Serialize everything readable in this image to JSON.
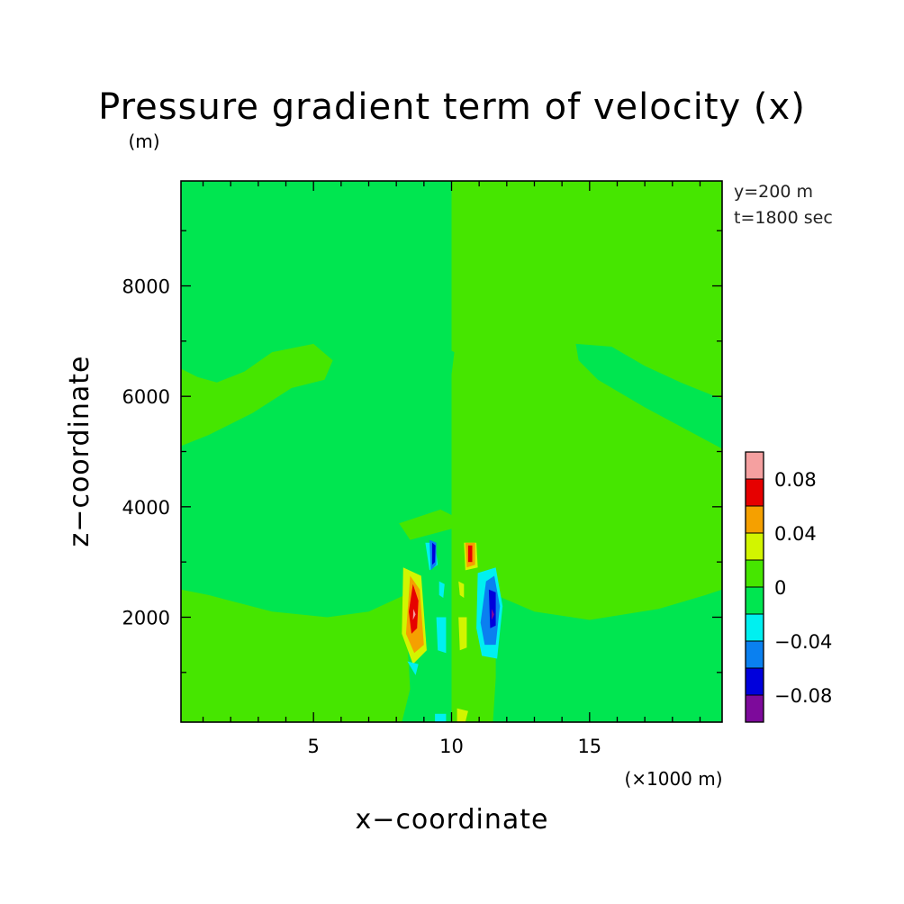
{
  "chart_data": {
    "type": "heatmap",
    "title": "Pressure gradient term of velocity (x)",
    "xlabel": "x−coordinate",
    "ylabel": "z−coordinate",
    "x_unit": "(×1000 m)",
    "y_unit": "(m)",
    "annotations": [
      "y=200 m",
      "t=1800 sec"
    ],
    "xlim": [
      0.2,
      19.8
    ],
    "ylim": [
      100,
      9900
    ],
    "x_ticks": [
      5,
      10,
      15
    ],
    "x_tick_labels": [
      "5",
      "10",
      "15"
    ],
    "y_ticks": [
      2000,
      4000,
      6000,
      8000
    ],
    "y_tick_labels": [
      "2000",
      "4000",
      "6000",
      "8000"
    ],
    "colorbar": {
      "levels": [
        -0.1,
        -0.08,
        -0.06,
        -0.04,
        -0.02,
        0,
        0.02,
        0.04,
        0.06,
        0.08,
        0.1
      ],
      "colors": [
        "#7d0a9b",
        "#0000dc",
        "#0a80f0",
        "#00f0f0",
        "#00e650",
        "#46e600",
        "#d2f500",
        "#f5a000",
        "#e60000",
        "#f5a0a0"
      ],
      "tick_values": [
        0.08,
        0.04,
        0,
        -0.04,
        -0.08
      ],
      "tick_labels": [
        "0.08",
        "0.04",
        "0",
        "−0.04",
        "−0.08"
      ]
    },
    "regions": [
      {
        "value": 0.01,
        "points": [
          [
            10,
            9900
          ],
          [
            19.8,
            9900
          ],
          [
            19.8,
            100
          ],
          [
            10,
            100
          ]
        ]
      },
      {
        "value": 0.01,
        "points": [
          [
            0.2,
            6500
          ],
          [
            0.8,
            6350
          ],
          [
            1.5,
            6250
          ],
          [
            2.5,
            6450
          ],
          [
            3.5,
            6800
          ],
          [
            5.0,
            6950
          ],
          [
            5.7,
            6650
          ],
          [
            5.4,
            6300
          ],
          [
            4.2,
            6150
          ],
          [
            2.8,
            5700
          ],
          [
            1.2,
            5300
          ],
          [
            0.2,
            5100
          ]
        ]
      },
      {
        "value": 0.01,
        "points": [
          [
            0.2,
            2500
          ],
          [
            1.2,
            2400
          ],
          [
            3.5,
            2100
          ],
          [
            5.5,
            2000
          ],
          [
            7.0,
            2100
          ],
          [
            8.3,
            2400
          ],
          [
            8.5,
            700
          ],
          [
            8.2,
            100
          ],
          [
            0.2,
            100
          ]
        ]
      },
      {
        "value": -0.01,
        "points": [
          [
            14.5,
            6950
          ],
          [
            15.8,
            6900
          ],
          [
            17.0,
            6550
          ],
          [
            18.3,
            6250
          ],
          [
            19.8,
            5950
          ],
          [
            19.8,
            5050
          ],
          [
            18.5,
            5400
          ],
          [
            17.0,
            5800
          ],
          [
            15.3,
            6300
          ],
          [
            14.6,
            6650
          ]
        ]
      },
      {
        "value": -0.01,
        "points": [
          [
            11.6,
            2400
          ],
          [
            13.0,
            2100
          ],
          [
            15.0,
            1950
          ],
          [
            17.5,
            2150
          ],
          [
            19.2,
            2400
          ],
          [
            19.8,
            2500
          ],
          [
            19.8,
            100
          ],
          [
            11.5,
            100
          ],
          [
            11.6,
            900
          ]
        ]
      },
      {
        "value": -0.01,
        "points": [
          [
            9.9,
            6850
          ],
          [
            10.1,
            6800
          ],
          [
            10.0,
            6400
          ],
          [
            9.85,
            6550
          ]
        ]
      },
      {
        "value": 0.01,
        "points": [
          [
            8.1,
            3700
          ],
          [
            9.6,
            3950
          ],
          [
            10.0,
            3850
          ],
          [
            11.2,
            3950
          ],
          [
            11.8,
            3700
          ],
          [
            11.4,
            3400
          ],
          [
            10.0,
            3600
          ],
          [
            8.5,
            3400
          ]
        ]
      },
      {
        "value": 0.03,
        "points": [
          [
            8.25,
            2900
          ],
          [
            8.9,
            2750
          ],
          [
            9.1,
            1400
          ],
          [
            8.6,
            1150
          ],
          [
            8.2,
            1700
          ]
        ]
      },
      {
        "value": 0.05,
        "points": [
          [
            8.5,
            2750
          ],
          [
            8.85,
            2500
          ],
          [
            9.0,
            1500
          ],
          [
            8.65,
            1350
          ],
          [
            8.35,
            1700
          ]
        ]
      },
      {
        "value": 0.07,
        "points": [
          [
            8.6,
            2600
          ],
          [
            8.8,
            2300
          ],
          [
            8.75,
            1800
          ],
          [
            8.55,
            1700
          ],
          [
            8.45,
            2100
          ]
        ]
      },
      {
        "value": 0.09,
        "points": [
          [
            8.62,
            2150
          ],
          [
            8.7,
            2050
          ],
          [
            8.6,
            1950
          ]
        ]
      },
      {
        "value": -0.03,
        "points": [
          [
            9.05,
            3350
          ],
          [
            9.4,
            3350
          ],
          [
            9.5,
            2950
          ],
          [
            9.2,
            2850
          ]
        ]
      },
      {
        "value": -0.05,
        "points": [
          [
            9.2,
            3400
          ],
          [
            9.45,
            3350
          ],
          [
            9.45,
            2950
          ],
          [
            9.25,
            2850
          ]
        ]
      },
      {
        "value": -0.07,
        "points": [
          [
            9.3,
            3350
          ],
          [
            9.42,
            3300
          ],
          [
            9.4,
            3000
          ],
          [
            9.3,
            2950
          ]
        ]
      },
      {
        "value": -0.03,
        "points": [
          [
            9.55,
            2650
          ],
          [
            9.75,
            2600
          ],
          [
            9.7,
            2350
          ],
          [
            9.55,
            2400
          ]
        ]
      },
      {
        "value": -0.03,
        "points": [
          [
            9.45,
            2000
          ],
          [
            9.8,
            2000
          ],
          [
            9.8,
            1350
          ],
          [
            9.5,
            1400
          ]
        ]
      },
      {
        "value": -0.03,
        "points": [
          [
            8.4,
            1200
          ],
          [
            8.8,
            1150
          ],
          [
            8.7,
            950
          ]
        ]
      },
      {
        "value": 0.03,
        "points": [
          [
            10.45,
            3350
          ],
          [
            10.9,
            3350
          ],
          [
            10.95,
            2900
          ],
          [
            10.5,
            2850
          ]
        ]
      },
      {
        "value": 0.05,
        "points": [
          [
            10.5,
            3350
          ],
          [
            10.85,
            3350
          ],
          [
            10.85,
            2950
          ],
          [
            10.55,
            2900
          ]
        ]
      },
      {
        "value": 0.07,
        "points": [
          [
            10.6,
            3300
          ],
          [
            10.75,
            3300
          ],
          [
            10.75,
            3000
          ],
          [
            10.6,
            3000
          ]
        ]
      },
      {
        "value": 0.03,
        "points": [
          [
            10.25,
            2650
          ],
          [
            10.45,
            2600
          ],
          [
            10.45,
            2350
          ],
          [
            10.3,
            2400
          ]
        ]
      },
      {
        "value": 0.03,
        "points": [
          [
            10.25,
            2000
          ],
          [
            10.55,
            2000
          ],
          [
            10.55,
            1450
          ],
          [
            10.3,
            1400
          ]
        ]
      },
      {
        "value": 0.03,
        "points": [
          [
            10.2,
            350
          ],
          [
            10.6,
            300
          ],
          [
            10.5,
            100
          ],
          [
            10.2,
            100
          ]
        ]
      },
      {
        "value": -0.03,
        "points": [
          [
            10.95,
            2800
          ],
          [
            11.6,
            2900
          ],
          [
            11.85,
            2200
          ],
          [
            11.65,
            1250
          ],
          [
            11.1,
            1300
          ],
          [
            10.9,
            1800
          ]
        ]
      },
      {
        "value": -0.05,
        "points": [
          [
            11.25,
            2650
          ],
          [
            11.55,
            2750
          ],
          [
            11.75,
            2200
          ],
          [
            11.6,
            1500
          ],
          [
            11.2,
            1500
          ],
          [
            11.05,
            1900
          ]
        ]
      },
      {
        "value": -0.07,
        "points": [
          [
            11.35,
            2500
          ],
          [
            11.6,
            2450
          ],
          [
            11.6,
            1850
          ],
          [
            11.4,
            1800
          ]
        ]
      },
      {
        "value": -0.09,
        "points": [
          [
            11.45,
            2150
          ],
          [
            11.55,
            2050
          ],
          [
            11.45,
            1950
          ]
        ]
      },
      {
        "value": -0.03,
        "points": [
          [
            9.4,
            250
          ],
          [
            9.8,
            250
          ],
          [
            9.8,
            100
          ],
          [
            9.4,
            100
          ]
        ]
      }
    ]
  }
}
